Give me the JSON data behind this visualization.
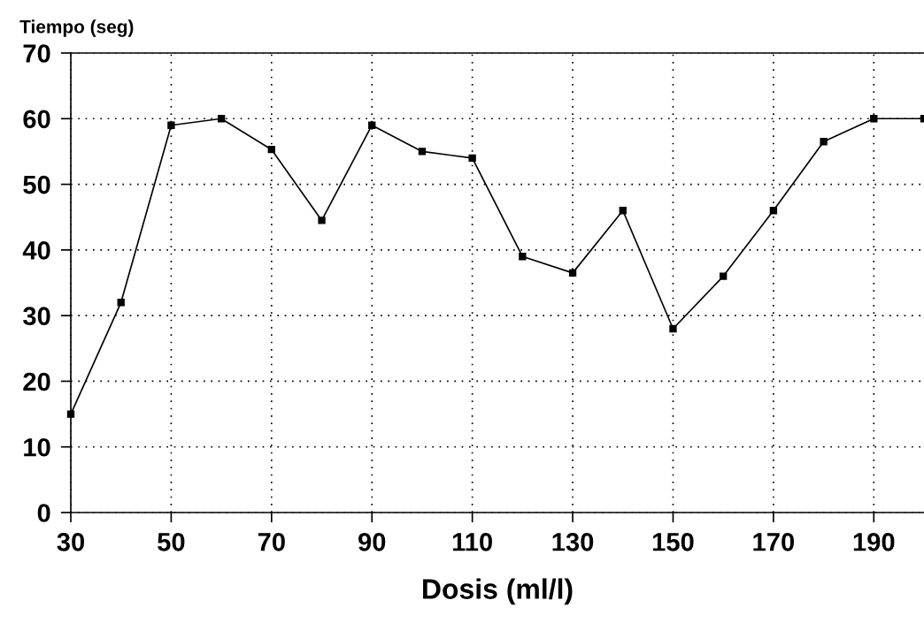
{
  "chart_data": {
    "type": "line",
    "xlabel": "Dosis (ml/l)",
    "ylabel": "Tiempo (seg)",
    "x": [
      30,
      40,
      50,
      60,
      70,
      80,
      90,
      100,
      110,
      120,
      130,
      140,
      150,
      160,
      170,
      180,
      190,
      200
    ],
    "series": [
      {
        "color": "#000000",
        "values": [
          15,
          32,
          59,
          60,
          55.3,
          44.5,
          59,
          55,
          54,
          39,
          36.5,
          46,
          28,
          36,
          46,
          56.5,
          60,
          60
        ]
      }
    ],
    "xlim": [
      30,
      200
    ],
    "xticks": [
      30,
      50,
      70,
      90,
      110,
      130,
      150,
      170,
      190
    ],
    "ylim": [
      0,
      70
    ],
    "yticks": [
      0,
      10,
      20,
      30,
      40,
      50,
      60,
      70
    ],
    "grid": true,
    "marker": "square",
    "line_style": "solid"
  }
}
